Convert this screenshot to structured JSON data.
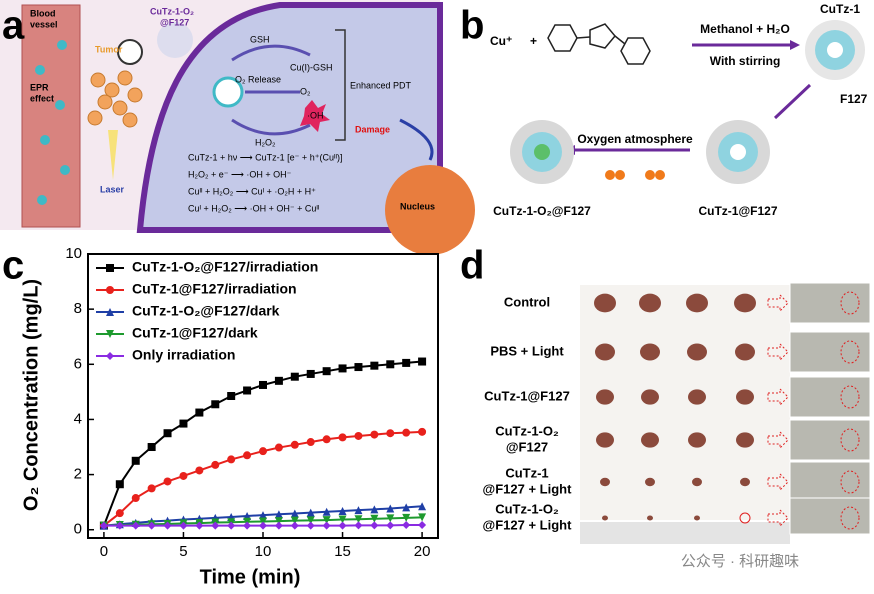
{
  "panel_a": {
    "letter": "a",
    "vessel": [
      "Blood",
      "vessel"
    ],
    "epr": [
      "EPR",
      "effect"
    ],
    "tumor": "Tumor",
    "agent": [
      "CuTz-1-O₂",
      "@F127"
    ],
    "laser": "Laser",
    "gsh": "GSH",
    "cu_gsh": "Cu(I)-GSH",
    "o2_release": "O₂ Release",
    "o2": "O₂",
    "oh": "·OH",
    "h2o2": "H₂O₂",
    "pdt": "Enhanced PDT",
    "damage": "Damage",
    "nucleus": "Nucleus",
    "equations": [
      "CuTz-1 + hν ⟶ CuTz-1 [e⁻ + h⁺(Cuᴵᴵ)]",
      "H₂O₂ + e⁻ ⟶ ·OH + OH⁻",
      "Cuᴵᴵ + H₂O₂ ⟶ Cuᴵ + ·O₂H + H⁺",
      "Cuᴵ + H₂O₂ ⟶ ·OH + OH⁻ + Cuᴵᴵ"
    ]
  },
  "panel_b": {
    "letter": "b",
    "cu": "Cu⁺",
    "plus": "+",
    "cond1": "Methanol + H₂O",
    "cond2": "With stirring",
    "product1": "CuTz-1",
    "f127": "F127",
    "cond3": "Oxygen atmosphere",
    "product2": "CuTz-1@F127",
    "product3": "CuTz-1-O₂@F127"
  },
  "panel_d": {
    "letter": "d",
    "rows": [
      [
        "Control"
      ],
      [
        "PBS + Light"
      ],
      [
        "CuTz-1@F127"
      ],
      [
        "CuTz-1-O₂",
        "@F127"
      ],
      [
        "CuTz-1",
        "@F127 + Light"
      ],
      [
        "CuTz-1-O₂",
        "@F127 + Light"
      ]
    ],
    "watermark": "公众号 · 科研趣味"
  },
  "chart_data": {
    "type": "line",
    "letter": "c",
    "x_label": "Time (min)",
    "y_label": "O₂ Concentration (mg/L)",
    "x": [
      0,
      1,
      2,
      3,
      4,
      5,
      6,
      7,
      8,
      9,
      10,
      11,
      12,
      13,
      14,
      15,
      16,
      17,
      18,
      19,
      20
    ],
    "xlim": [
      -1,
      21
    ],
    "xticks": [
      0,
      5,
      10,
      15,
      20
    ],
    "ylim": [
      -0.3,
      10
    ],
    "yticks": [
      0,
      2,
      4,
      6,
      8,
      10
    ],
    "legend": "upper left",
    "series": [
      {
        "name": "CuTz-1-O₂@F127/irradiation",
        "color": "#000000",
        "marker": "square",
        "values": [
          0.15,
          1.65,
          2.5,
          3.0,
          3.5,
          3.85,
          4.25,
          4.55,
          4.85,
          5.05,
          5.25,
          5.4,
          5.55,
          5.65,
          5.75,
          5.85,
          5.9,
          5.95,
          6.0,
          6.05,
          6.1
        ]
      },
      {
        "name": "CuTz-1@F127/irradiation",
        "color": "#e8211c",
        "marker": "circle",
        "values": [
          0.15,
          0.6,
          1.15,
          1.5,
          1.75,
          1.95,
          2.15,
          2.35,
          2.55,
          2.7,
          2.85,
          2.98,
          3.08,
          3.18,
          3.28,
          3.35,
          3.4,
          3.45,
          3.5,
          3.52,
          3.55
        ]
      },
      {
        "name": "CuTz-1-O₂@F127/dark",
        "color": "#1f3fa6",
        "marker": "triangle-up",
        "values": [
          0.15,
          0.2,
          0.25,
          0.3,
          0.33,
          0.37,
          0.4,
          0.43,
          0.46,
          0.5,
          0.53,
          0.56,
          0.59,
          0.62,
          0.65,
          0.68,
          0.71,
          0.74,
          0.77,
          0.81,
          0.85
        ]
      },
      {
        "name": "CuTz-1@F127/dark",
        "color": "#1e9a2e",
        "marker": "triangle-down",
        "values": [
          0.15,
          0.17,
          0.18,
          0.2,
          0.21,
          0.23,
          0.24,
          0.26,
          0.27,
          0.29,
          0.3,
          0.31,
          0.33,
          0.34,
          0.35,
          0.37,
          0.38,
          0.4,
          0.41,
          0.43,
          0.45
        ]
      },
      {
        "name": "Only irradiation",
        "color": "#8a2be2",
        "marker": "diamond",
        "values": [
          0.15,
          0.15,
          0.15,
          0.15,
          0.15,
          0.15,
          0.15,
          0.15,
          0.15,
          0.15,
          0.15,
          0.15,
          0.15,
          0.15,
          0.15,
          0.15,
          0.16,
          0.16,
          0.16,
          0.17,
          0.17
        ]
      }
    ]
  }
}
